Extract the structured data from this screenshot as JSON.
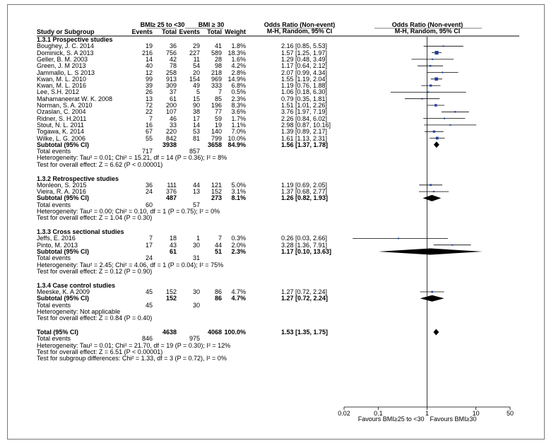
{
  "header": {
    "group1": "BMI≥ 25 to <30",
    "group2": "BMI ≥ 30",
    "or_table": "Odds Ratio (Non-event)",
    "or_table_method": "M-H, Random, 95% CI",
    "or_plot": "Odds Ratio (Non-event)",
    "or_plot_method": "M-H, Random, 95% CI",
    "study": "Study or Subgroup",
    "events1": "Events",
    "total1": "Total",
    "events2": "Events",
    "total2": "Total",
    "weight": "Weight"
  },
  "sections": [
    {
      "title": "1.3.1 Prospective studies",
      "studies": [
        {
          "name": "Boughey, J. C. 2014",
          "e1": "19",
          "t1": "36",
          "e2": "29",
          "t2": "41",
          "w": "1.8%",
          "ci": "2.16 [0.85, 5.53]"
        },
        {
          "name": "Dominick, S. A 2013",
          "e1": "216",
          "t1": "756",
          "e2": "227",
          "t2": "589",
          "w": "18.3%",
          "ci": "1.57 [1.25, 1.97]"
        },
        {
          "name": "Geller, B. M. 2003",
          "e1": "14",
          "t1": "42",
          "e2": "11",
          "t2": "28",
          "w": "1.6%",
          "ci": "1.29 [0.48, 3.49]"
        },
        {
          "name": "Green, J. M 2013",
          "e1": "40",
          "t1": "78",
          "e2": "54",
          "t2": "98",
          "w": "4.2%",
          "ci": "1.17 [0.64, 2.12]"
        },
        {
          "name": "Jammallo, L. S 2013",
          "e1": "12",
          "t1": "258",
          "e2": "20",
          "t2": "218",
          "w": "2.8%",
          "ci": "2.07 [0.99, 4.34]"
        },
        {
          "name": "Kwan, M. L. 2010",
          "e1": "99",
          "t1": "913",
          "e2": "154",
          "t2": "969",
          "w": "14.9%",
          "ci": "1.55 [1.19, 2.04]"
        },
        {
          "name": "Kwan, M. L. 2016",
          "e1": "39",
          "t1": "309",
          "e2": "49",
          "t2": "333",
          "w": "6.8%",
          "ci": "1.19 [0.76, 1.88]"
        },
        {
          "name": "Lee, S.H. 2012",
          "e1": "26",
          "t1": "37",
          "e2": "5",
          "t2": "7",
          "w": "0.5%",
          "ci": "1.06 [0.18, 6.30]"
        },
        {
          "name": "Mahamaneerat W. K. 2008",
          "e1": "13",
          "t1": "61",
          "e2": "15",
          "t2": "85",
          "w": "2.3%",
          "ci": "0.79 [0.35, 1.81]"
        },
        {
          "name": "Norman, S. A. 2010",
          "e1": "72",
          "t1": "200",
          "e2": "90",
          "t2": "196",
          "w": "8.3%",
          "ci": "1.51 [1.01, 2.26]"
        },
        {
          "name": "Ozaslan, C. 2004",
          "e1": "22",
          "t1": "107",
          "e2": "38",
          "t2": "77",
          "w": "3.6%",
          "ci": "3.76 [1.97, 7.19]"
        },
        {
          "name": "Ridner, S. H.2011",
          "e1": "7",
          "t1": "46",
          "e2": "17",
          "t2": "59",
          "w": "1.7%",
          "ci": "2.26 [0.84, 6.02]"
        },
        {
          "name": "Stout, N. L. 2011",
          "e1": "16",
          "t1": "33",
          "e2": "14",
          "t2": "19",
          "w": "1.1%",
          "ci": "2.98 [0.87, 10.16]"
        },
        {
          "name": "Togawa, K. 2014",
          "e1": "67",
          "t1": "220",
          "e2": "53",
          "t2": "140",
          "w": "7.0%",
          "ci": "1.39 [0.89, 2.17]"
        },
        {
          "name": "Wilke, L. G. 2006",
          "e1": "55",
          "t1": "842",
          "e2": "81",
          "t2": "799",
          "w": "10.0%",
          "ci": "1.61 [1.13, 2.31]"
        }
      ],
      "subtotal": {
        "label": "Subtotal (95% CI)",
        "t1": "3938",
        "t2": "3658",
        "w": "84.9%",
        "ci": "1.56 [1.37, 1.78]"
      },
      "total_events": {
        "label": "Total events",
        "e1": "717",
        "e2": "857"
      },
      "heterogeneity": "Heterogeneity: Tau² = 0.01; Chi² = 15.21, df = 14 (P = 0.36); I² = 8%",
      "overall": "Test for overall effect: Z = 6.62 (P < 0.00001)"
    },
    {
      "title": "1.3.2 Retrospective studies",
      "studies": [
        {
          "name": "Monleon, S. 2015",
          "e1": "36",
          "t1": "111",
          "e2": "44",
          "t2": "121",
          "w": "5.0%",
          "ci": "1.19 [0.69, 2.05]"
        },
        {
          "name": "Vieira, R. A. 2016",
          "e1": "24",
          "t1": "376",
          "e2": "13",
          "t2": "152",
          "w": "3.1%",
          "ci": "1.37 [0.68, 2.77]"
        }
      ],
      "subtotal": {
        "label": "Subtotal (95% CI)",
        "t1": "487",
        "t2": "273",
        "w": "8.1%",
        "ci": "1.26 [0.82, 1.93]"
      },
      "total_events": {
        "label": "Total events",
        "e1": "60",
        "e2": "57"
      },
      "heterogeneity": "Heterogeneity: Tau² = 0.00; Chi² = 0.10, df = 1 (P = 0.75); I² = 0%",
      "overall": "Test for overall effect: Z = 1.04 (P = 0.30)"
    },
    {
      "title": "1.3.3 Cross sectional studies",
      "studies": [
        {
          "name": "Jeffs, E. 2016",
          "e1": "7",
          "t1": "18",
          "e2": "1",
          "t2": "7",
          "w": "0.3%",
          "ci": "0.26 [0.03, 2.66]"
        },
        {
          "name": "Pinto, M. 2013",
          "e1": "17",
          "t1": "43",
          "e2": "30",
          "t2": "44",
          "w": "2.0%",
          "ci": "3.28 [1.36, 7.91]"
        }
      ],
      "subtotal": {
        "label": "Subtotal (95% CI)",
        "t1": "61",
        "t2": "51",
        "w": "2.3%",
        "ci": "1.17 [0.10, 13.63]"
      },
      "total_events": {
        "label": "Total events",
        "e1": "24",
        "e2": "31"
      },
      "heterogeneity": "Heterogeneity: Tau² = 2.45; Chi² = 4.06, df = 1 (P = 0.04); I² = 75%",
      "overall": "Test for overall effect: Z = 0.12 (P = 0.90)"
    },
    {
      "title": "1.3.4 Case control studies",
      "studies": [
        {
          "name": "Meeske, K. A 2009",
          "e1": "45",
          "t1": "152",
          "e2": "30",
          "t2": "86",
          "w": "4.7%",
          "ci": "1.27 [0.72, 2.24]"
        }
      ],
      "subtotal": {
        "label": "Subtotal (95% CI)",
        "t1": "152",
        "t2": "86",
        "w": "4.7%",
        "ci": "1.27 [0.72, 2.24]"
      },
      "total_events": {
        "label": "Total events",
        "e1": "45",
        "e2": "30"
      },
      "heterogeneity": "Heterogeneity: Not applicable",
      "overall": "Test for overall effect: Z = 0.84 (P = 0.40)"
    }
  ],
  "total": {
    "label": "Total (95% CI)",
    "t1": "4638",
    "t2": "4068",
    "w": "100.0%",
    "ci": "1.53 [1.35, 1.75]"
  },
  "total_events": {
    "label": "Total events",
    "e1": "846",
    "e2": "975"
  },
  "total_heterogeneity": "Heterogeneity: Tau² = 0.01; Chi² = 21.70, df = 19 (P = 0.30); I² = 12%",
  "total_overall": "Test for overall effect: Z = 6.51 (P < 0.00001)",
  "subgroup_test": "Test for subgroup differences: Chi² = 1.33, df = 3 (P = 0.72), I² = 0%",
  "chart_data": {
    "type": "forest",
    "scale": "log",
    "title": "Odds Ratio (Non-event) M-H, Random, 95% CI",
    "xlim": [
      0.02,
      50
    ],
    "ticks": [
      0.02,
      0.1,
      1,
      10,
      50
    ],
    "tick_labels": [
      "0.02",
      "0.1",
      "1",
      "10",
      "50"
    ],
    "favours_left": "Favours BMI≥25 to <30",
    "favours_right": "Favours BMI≥30",
    "studies": [
      {
        "section": 0,
        "or": 2.16,
        "lo": 0.85,
        "hi": 5.53,
        "weight": 1.8
      },
      {
        "section": 0,
        "or": 1.57,
        "lo": 1.25,
        "hi": 1.97,
        "weight": 18.3
      },
      {
        "section": 0,
        "or": 1.29,
        "lo": 0.48,
        "hi": 3.49,
        "weight": 1.6
      },
      {
        "section": 0,
        "or": 1.17,
        "lo": 0.64,
        "hi": 2.12,
        "weight": 4.2
      },
      {
        "section": 0,
        "or": 2.07,
        "lo": 0.99,
        "hi": 4.34,
        "weight": 2.8
      },
      {
        "section": 0,
        "or": 1.55,
        "lo": 1.19,
        "hi": 2.04,
        "weight": 14.9
      },
      {
        "section": 0,
        "or": 1.19,
        "lo": 0.76,
        "hi": 1.88,
        "weight": 6.8
      },
      {
        "section": 0,
        "or": 1.06,
        "lo": 0.18,
        "hi": 6.3,
        "weight": 0.5
      },
      {
        "section": 0,
        "or": 0.79,
        "lo": 0.35,
        "hi": 1.81,
        "weight": 2.3
      },
      {
        "section": 0,
        "or": 1.51,
        "lo": 1.01,
        "hi": 2.26,
        "weight": 8.3
      },
      {
        "section": 0,
        "or": 3.76,
        "lo": 1.97,
        "hi": 7.19,
        "weight": 3.6
      },
      {
        "section": 0,
        "or": 2.26,
        "lo": 0.84,
        "hi": 6.02,
        "weight": 1.7
      },
      {
        "section": 0,
        "or": 2.98,
        "lo": 0.87,
        "hi": 10.16,
        "weight": 1.1
      },
      {
        "section": 0,
        "or": 1.39,
        "lo": 0.89,
        "hi": 2.17,
        "weight": 7.0
      },
      {
        "section": 0,
        "or": 1.61,
        "lo": 1.13,
        "hi": 2.31,
        "weight": 10.0
      },
      {
        "section": 1,
        "or": 1.19,
        "lo": 0.69,
        "hi": 2.05,
        "weight": 5.0
      },
      {
        "section": 1,
        "or": 1.37,
        "lo": 0.68,
        "hi": 2.77,
        "weight": 3.1
      },
      {
        "section": 2,
        "or": 0.26,
        "lo": 0.03,
        "hi": 2.66,
        "weight": 0.3
      },
      {
        "section": 2,
        "or": 3.28,
        "lo": 1.36,
        "hi": 7.91,
        "weight": 2.0
      },
      {
        "section": 3,
        "or": 1.27,
        "lo": 0.72,
        "hi": 2.24,
        "weight": 4.7
      }
    ],
    "subtotals": [
      {
        "section": 0,
        "or": 1.56,
        "lo": 1.37,
        "hi": 1.78
      },
      {
        "section": 1,
        "or": 1.26,
        "lo": 0.82,
        "hi": 1.93
      },
      {
        "section": 2,
        "or": 1.17,
        "lo": 0.1,
        "hi": 13.63
      },
      {
        "section": 3,
        "or": 1.27,
        "lo": 0.72,
        "hi": 2.24
      }
    ],
    "overall": {
      "or": 1.53,
      "lo": 1.35,
      "hi": 1.75
    }
  }
}
